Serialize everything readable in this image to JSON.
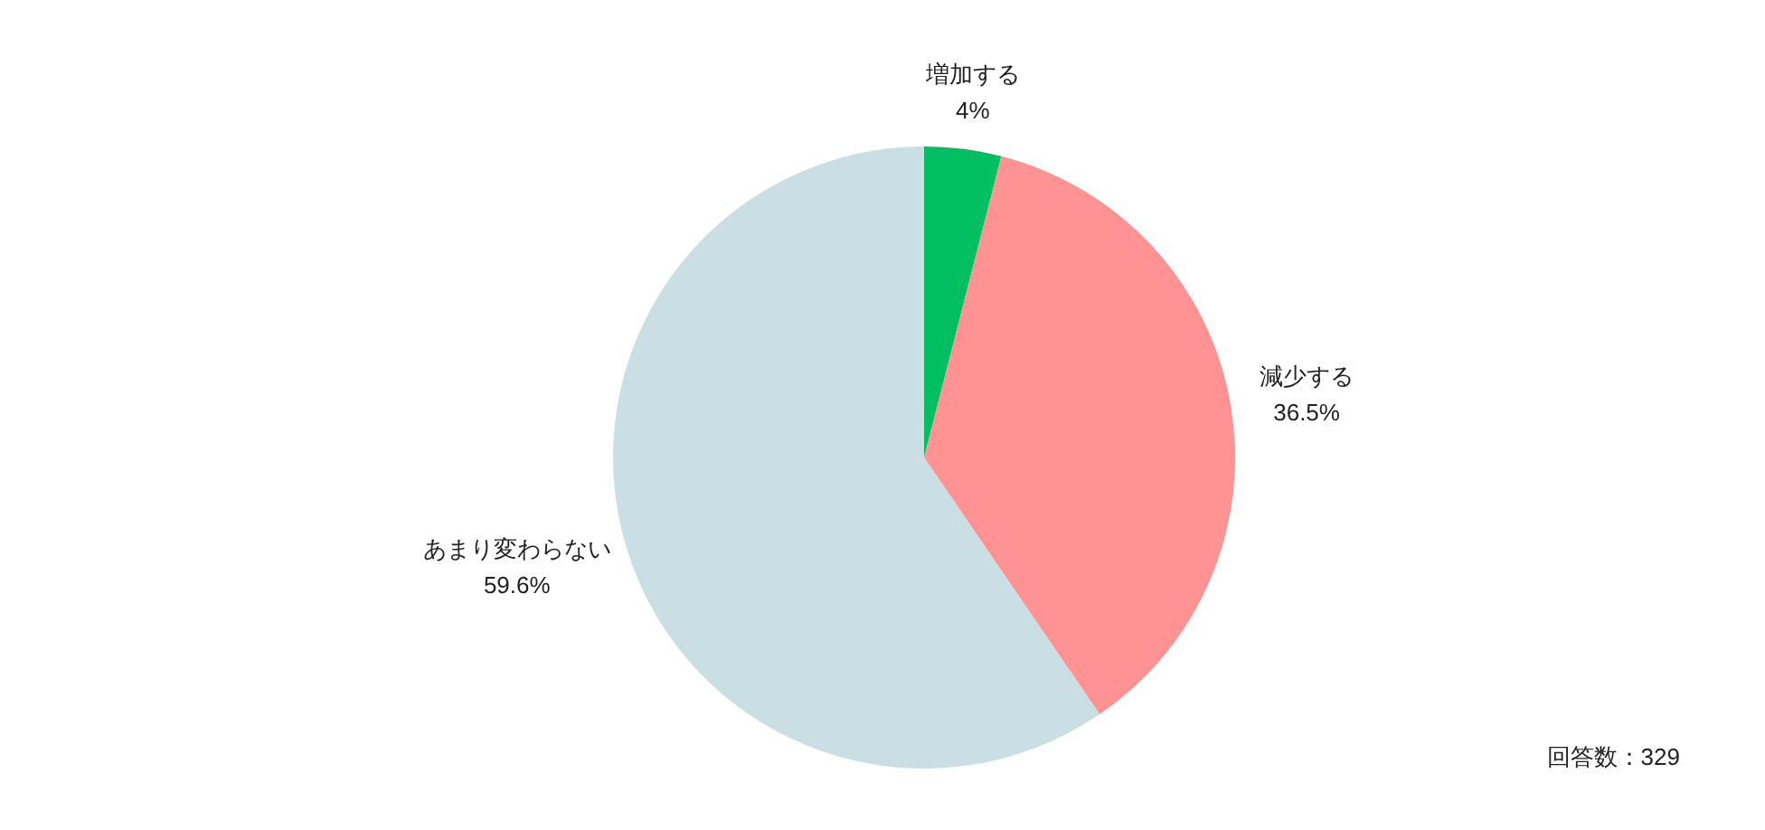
{
  "chart_data": {
    "type": "pie",
    "categories": [
      "増加する",
      "減少する",
      "あまり変わらない"
    ],
    "values": [
      4,
      36.5,
      59.6
    ],
    "colors": [
      "#00bf63",
      "#ff9292",
      "#cadfe3"
    ],
    "value_labels": [
      "4%",
      "36.5%",
      "59.6%"
    ],
    "annotations": [
      "回答数：329"
    ]
  }
}
